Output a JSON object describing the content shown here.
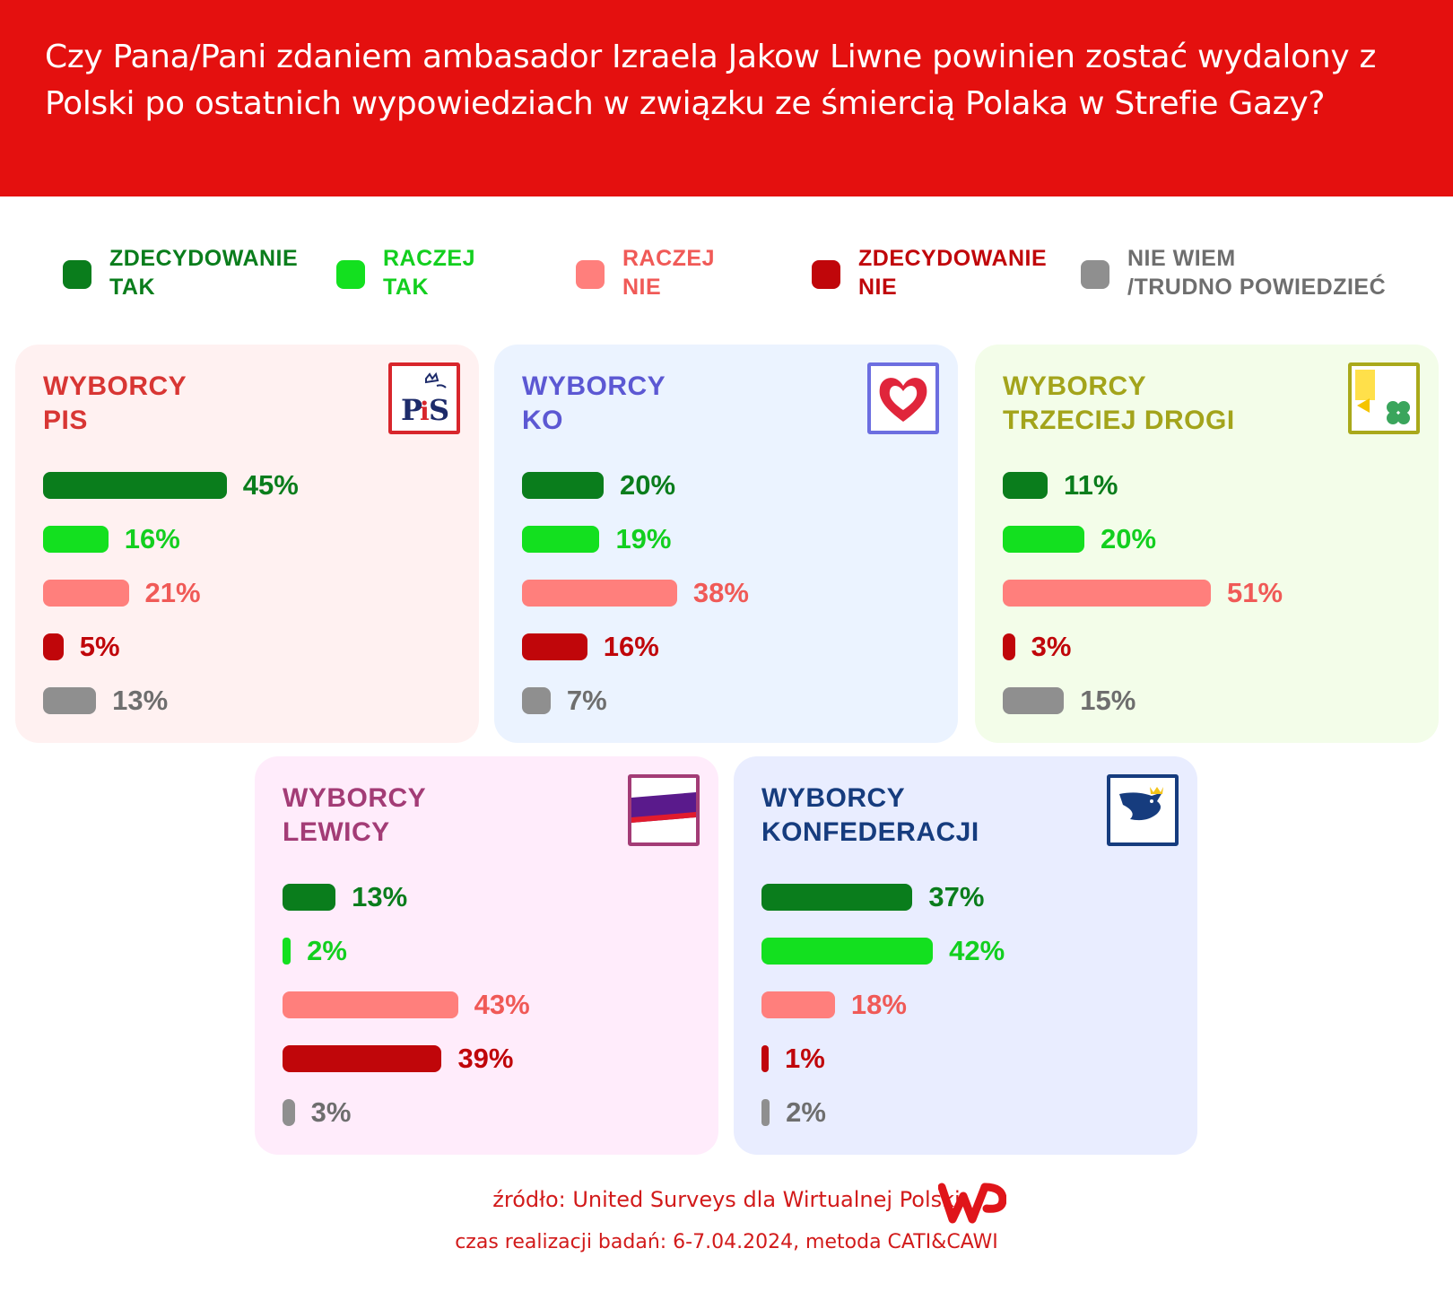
{
  "header": {
    "title": "Czy Pana/Pani zdaniem ambasador Izraela Jakow Liwne powinien zostać wydalony z Polski po ostatnich wypowiedziach w związku ze śmiercią Polaka w Strefie Gazy?"
  },
  "legend": [
    {
      "label": "ZDECYDOWANIE\nTAK",
      "color": "#0a7d1c"
    },
    {
      "label": "RACZEJ\nTAK",
      "color": "#13e01f"
    },
    {
      "label": "RACZEJ\nNIE",
      "color": "#ff7f7c"
    },
    {
      "label": "ZDECYDOWANIE\nNIE",
      "color": "#c0060a"
    },
    {
      "label": "NIE WIEM\n/TRUDNO POWIEDZIEĆ",
      "color": "#8f8f8f"
    }
  ],
  "label_colors": [
    "#0a7d1c",
    "#13cf1f",
    "#f05a57",
    "#c0060a",
    "#6e6e6e"
  ],
  "chart_data": [
    {
      "type": "bar",
      "title": "WYBORCY\nPIS",
      "categories": [
        "ZDECYDOWANIE TAK",
        "RACZEJ TAK",
        "RACZEJ NIE",
        "ZDECYDOWANIE NIE",
        "NIE WIEM /TRUDNO POWIEDZIEĆ"
      ],
      "values": [
        45,
        16,
        21,
        5,
        13
      ],
      "value_labels": [
        "45%",
        "16%",
        "21%",
        "5%",
        "13%"
      ],
      "logo": "PiS",
      "colors": {
        "background": "#fff1f1",
        "title": "#d83634",
        "logo_border": "#d8262c"
      }
    },
    {
      "type": "bar",
      "title": "WYBORCY\nKO",
      "categories": [
        "ZDECYDOWANIE TAK",
        "RACZEJ TAK",
        "RACZEJ NIE",
        "ZDECYDOWANIE NIE",
        "NIE WIEM /TRUDNO POWIEDZIEĆ"
      ],
      "values": [
        20,
        19,
        38,
        16,
        7
      ],
      "value_labels": [
        "20%",
        "19%",
        "38%",
        "16%",
        "7%"
      ],
      "logo": "heart",
      "colors": {
        "background": "#ebf3ff",
        "title": "#5c58d3",
        "logo_border": "#6c6ee0"
      }
    },
    {
      "type": "bar",
      "title": "WYBORCY\nTRZECIEJ DROGI",
      "categories": [
        "ZDECYDOWANIE TAK",
        "RACZEJ TAK",
        "RACZEJ NIE",
        "ZDECYDOWANIE NIE",
        "NIE WIEM /TRUDNO POWIEDZIEĆ"
      ],
      "values": [
        11,
        20,
        51,
        3,
        15
      ],
      "value_labels": [
        "11%",
        "20%",
        "51%",
        "3%",
        "15%"
      ],
      "logo": "clover",
      "colors": {
        "background": "#f3fde9",
        "title": "#a3a41b",
        "logo_border": "#a9a91b"
      }
    },
    {
      "type": "bar",
      "title": "WYBORCY\nLEWICY",
      "categories": [
        "ZDECYDOWANIE TAK",
        "RACZEJ TAK",
        "RACZEJ NIE",
        "ZDECYDOWANIE NIE",
        "NIE WIEM /TRUDNO POWIEDZIEĆ"
      ],
      "values": [
        13,
        2,
        43,
        39,
        3
      ],
      "value_labels": [
        "13%",
        "2%",
        "43%",
        "39%",
        "3%"
      ],
      "logo": "LEWICA",
      "colors": {
        "background": "#ffecfb",
        "title": "#a33c76",
        "logo_border": "#a33c76"
      }
    },
    {
      "type": "bar",
      "title": "WYBORCY\nKONFEDERACJI",
      "categories": [
        "ZDECYDOWANIE TAK",
        "RACZEJ TAK",
        "RACZEJ NIE",
        "ZDECYDOWANIE NIE",
        "NIE WIEM /TRUDNO POWIEDZIEĆ"
      ],
      "values": [
        37,
        42,
        18,
        1,
        2
      ],
      "value_labels": [
        "37%",
        "42%",
        "18%",
        "1%",
        "2%"
      ],
      "logo": "KONFEDERACJA",
      "colors": {
        "background": "#e9edff",
        "title": "#163c7e",
        "logo_border": "#163c7e"
      }
    }
  ],
  "footer": {
    "source": "źródło: United Surveys dla Wirtualnej Polski",
    "method": "czas realizacji badań: 6-7.04.2024, metoda CATI&CAWI"
  }
}
